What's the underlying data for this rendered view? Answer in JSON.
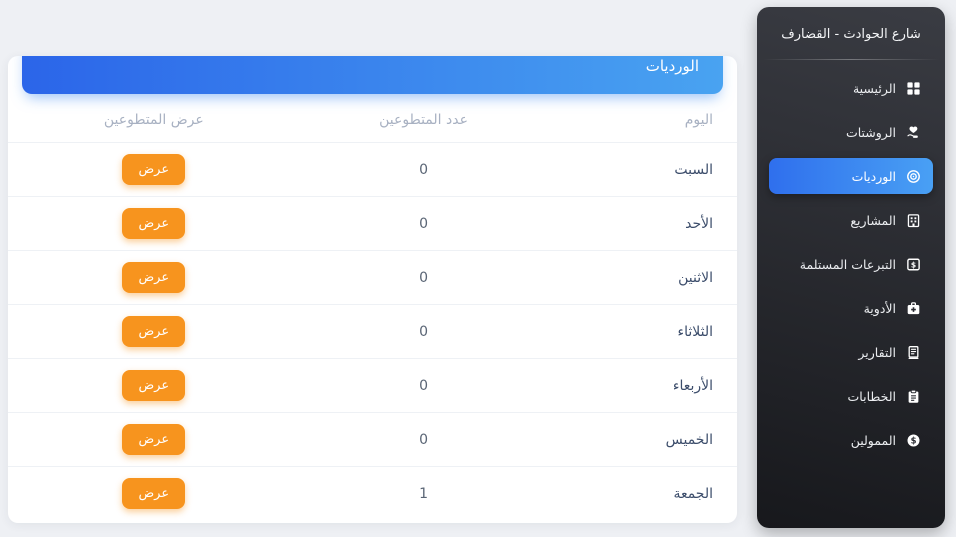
{
  "sidebar": {
    "title": "شارع الحوادث - القضارف",
    "items": [
      {
        "name": "home",
        "label": "الرئيسية",
        "icon": "dashboard-icon",
        "active": false
      },
      {
        "name": "prescriptions",
        "label": "الروشتات",
        "icon": "hand-heart-icon",
        "active": false
      },
      {
        "name": "shifts",
        "label": "الورديات",
        "icon": "shifts-target-icon",
        "active": true
      },
      {
        "name": "projects",
        "label": "المشاريع",
        "icon": "building-icon",
        "active": false
      },
      {
        "name": "received-donations",
        "label": "التبرعات المستلمة",
        "icon": "dollar-square-icon",
        "active": false
      },
      {
        "name": "medicines",
        "label": "الأدوية",
        "icon": "first-aid-kit-icon",
        "active": false
      },
      {
        "name": "reports",
        "label": "التقارير",
        "icon": "report-book-icon",
        "active": false
      },
      {
        "name": "letters",
        "label": "الخطابات",
        "icon": "clipboard-icon",
        "active": false
      },
      {
        "name": "funders",
        "label": "الممولين",
        "icon": "dollar-circle-icon",
        "active": false
      }
    ]
  },
  "header": {
    "title": "الورديات"
  },
  "table": {
    "columns": [
      "اليوم",
      "عدد المتطوعين",
      "عرض المتطوعين"
    ],
    "rows": [
      {
        "day": "السبت",
        "count": "0",
        "action": "عرض"
      },
      {
        "day": "الأحد",
        "count": "0",
        "action": "عرض"
      },
      {
        "day": "الاثنين",
        "count": "0",
        "action": "عرض"
      },
      {
        "day": "الثلاثاء",
        "count": "0",
        "action": "عرض"
      },
      {
        "day": "الأربعاء",
        "count": "0",
        "action": "عرض"
      },
      {
        "day": "الخميس",
        "count": "0",
        "action": "عرض"
      },
      {
        "day": "الجمعة",
        "count": "1",
        "action": "عرض"
      }
    ]
  },
  "colors": {
    "page_bg": "#eef0f4",
    "sidebar_a": "#3a3c43",
    "sidebar_b": "#17181c",
    "header_grad_a": "#2b65e9",
    "header_grad_b": "#49a3f1",
    "active_grad_a": "#2f6fed",
    "active_grad_b": "#49a0f4",
    "btn_orange": "#f7941e"
  }
}
